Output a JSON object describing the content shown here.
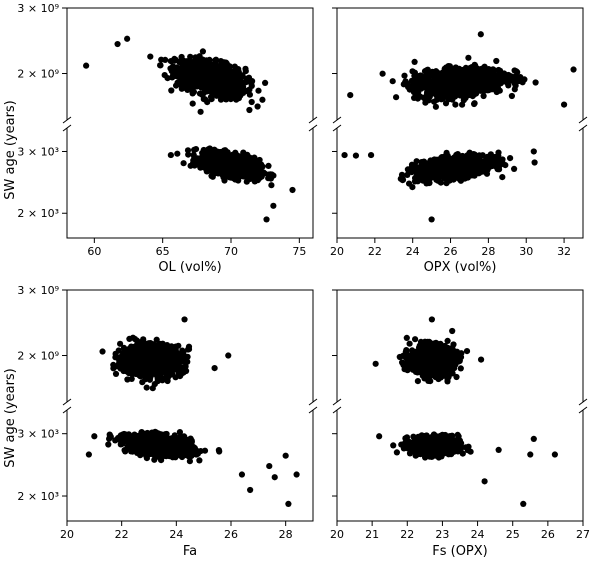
{
  "figure": {
    "ylabel": "SW age (years)"
  },
  "chart_data": [
    {
      "type": "scatter",
      "panel": "top-left",
      "xlabel": "OL (vol%)",
      "xlim": [
        58,
        76
      ],
      "xticks": [
        "60",
        "65",
        "70",
        "75"
      ],
      "xtick_values": [
        60,
        65,
        70,
        75
      ],
      "ylabel": "SW age (years)",
      "broken_y_axis": true,
      "upper_ylim": [
        1500000000,
        3000000000
      ],
      "upper_yticks": [
        "2 × 10⁹",
        "3 × 10⁹"
      ],
      "upper_ytick_values": [
        2000000000,
        3000000000
      ],
      "lower_ylim": [
        1700,
        3500
      ],
      "lower_yticks": [
        "2 × 10³",
        "3 × 10³"
      ],
      "lower_ytick_values": [
        2000,
        3000
      ],
      "upper_cluster": {
        "x_center": 68.5,
        "x_spread": 2.3,
        "y_center": 1950000000,
        "y_spread": 180000000,
        "slope": -0.5,
        "count": 900
      },
      "lower_cluster": {
        "x_center": 70,
        "x_spread": 1.9,
        "y_center": 2750,
        "y_spread": 170,
        "slope": -0.6,
        "count": 900
      },
      "upper_outliers": [
        [
          59.4,
          2100000000
        ],
        [
          61.7,
          2400000000
        ],
        [
          62.4,
          2480000000
        ],
        [
          72.3,
          1700000000
        ]
      ],
      "lower_outliers": [
        [
          65.6,
          2930
        ],
        [
          72.6,
          1920
        ],
        [
          74.5,
          2330
        ],
        [
          73.1,
          2100
        ]
      ]
    },
    {
      "type": "scatter",
      "panel": "top-right",
      "xlabel": "OPX (vol%)",
      "xlim": [
        20,
        33
      ],
      "xticks": [
        "20",
        "22",
        "24",
        "26",
        "28",
        "30",
        "32"
      ],
      "xtick_values": [
        20,
        22,
        24,
        26,
        28,
        30,
        32
      ],
      "broken_y_axis": true,
      "upper_ylim": [
        1500000000,
        3000000000
      ],
      "lower_ylim": [
        1700,
        3500
      ],
      "upper_cluster": {
        "x_center": 26.5,
        "x_spread": 2.2,
        "y_center": 1900000000,
        "y_spread": 150000000,
        "slope": 0.3,
        "count": 900
      },
      "lower_cluster": {
        "x_center": 26.2,
        "x_spread": 1.8,
        "y_center": 2700,
        "y_spread": 160,
        "slope": 0.5,
        "count": 900
      },
      "upper_outliers": [
        [
          20.7,
          1750000000
        ],
        [
          32.0,
          1650000000
        ],
        [
          32.5,
          2050000000
        ],
        [
          27.6,
          2550000000
        ]
      ],
      "lower_outliers": [
        [
          20.4,
          2930
        ],
        [
          21.0,
          2920
        ],
        [
          21.8,
          2930
        ],
        [
          25.0,
          1920
        ],
        [
          30.4,
          3000
        ]
      ]
    },
    {
      "type": "scatter",
      "panel": "bottom-left",
      "xlabel": "Fa",
      "xlim": [
        20,
        29
      ],
      "xticks": [
        "20",
        "22",
        "24",
        "26",
        "28"
      ],
      "xtick_values": [
        20,
        22,
        24,
        26,
        28
      ],
      "ylabel": "SW age (years)",
      "broken_y_axis": true,
      "upper_ylim": [
        1500000000,
        3000000000
      ],
      "upper_yticks": [
        "2 × 10⁹",
        "3 × 10⁹"
      ],
      "upper_ytick_values": [
        2000000000,
        3000000000
      ],
      "lower_ylim": [
        1700,
        3500
      ],
      "lower_yticks": [
        "2 × 10³",
        "3 × 10³"
      ],
      "lower_ytick_values": [
        2000,
        3000
      ],
      "upper_cluster": {
        "x_center": 23.1,
        "x_spread": 1.0,
        "y_center": 1950000000,
        "y_spread": 170000000,
        "slope": 0,
        "count": 900
      },
      "lower_cluster": {
        "x_center": 23.4,
        "x_spread": 1.1,
        "y_center": 2780,
        "y_spread": 160,
        "slope": -0.4,
        "count": 900
      },
      "upper_outliers": [
        [
          21.3,
          2050000000
        ],
        [
          25.9,
          2000000000
        ],
        [
          25.4,
          1850000000
        ],
        [
          24.3,
          2500000000
        ]
      ],
      "lower_outliers": [
        [
          20.8,
          2620
        ],
        [
          21.0,
          2950
        ],
        [
          26.7,
          2080
        ],
        [
          27.4,
          2430
        ],
        [
          27.6,
          2260
        ],
        [
          28.1,
          1900
        ],
        [
          28.4,
          2300
        ],
        [
          28.0,
          2600
        ],
        [
          26.4,
          2300
        ]
      ]
    },
    {
      "type": "scatter",
      "panel": "bottom-right",
      "xlabel": "Fs (OPX)",
      "xlim": [
        20,
        27
      ],
      "xticks": [
        "20",
        "21",
        "22",
        "23",
        "24",
        "25",
        "26",
        "27"
      ],
      "xtick_values": [
        20,
        21,
        22,
        23,
        24,
        25,
        26,
        27
      ],
      "broken_y_axis": true,
      "upper_ylim": [
        1500000000,
        3000000000
      ],
      "lower_ylim": [
        1700,
        3500
      ],
      "upper_cluster": {
        "x_center": 22.7,
        "x_spread": 0.55,
        "y_center": 1950000000,
        "y_spread": 160000000,
        "slope": 0,
        "count": 800
      },
      "lower_cluster": {
        "x_center": 22.8,
        "x_spread": 0.6,
        "y_center": 2780,
        "y_spread": 150,
        "slope": 0,
        "count": 800
      },
      "upper_outliers": [
        [
          21.1,
          1900000000
        ],
        [
          22.7,
          2500000000
        ],
        [
          24.1,
          1950000000
        ]
      ],
      "lower_outliers": [
        [
          21.2,
          2950
        ],
        [
          25.3,
          1900
        ],
        [
          25.6,
          2900
        ],
        [
          26.2,
          2620
        ],
        [
          25.5,
          2620
        ],
        [
          24.6,
          2700
        ],
        [
          24.2,
          2200
        ],
        [
          21.6,
          2780
        ]
      ]
    }
  ]
}
